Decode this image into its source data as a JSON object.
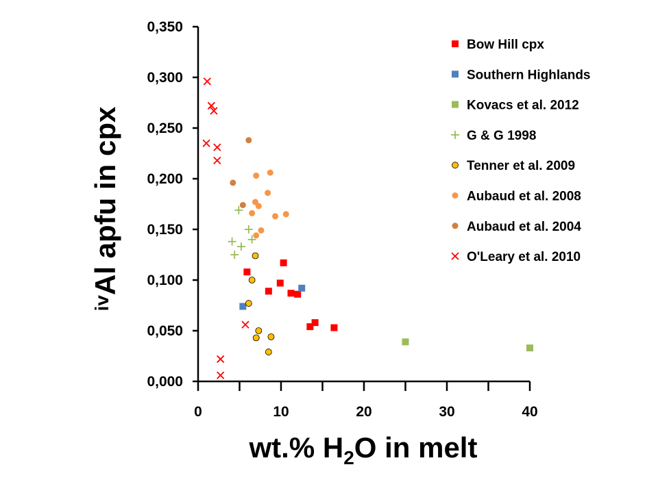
{
  "chart_data": {
    "type": "scatter",
    "xlabel": {
      "main": "wt.% H",
      "sub": "2",
      "rest": "O in melt"
    },
    "ylabel": {
      "sup": "iv",
      "main": "Al apfu in cpx"
    },
    "xlim": [
      0,
      40
    ],
    "ylim": [
      0,
      0.35
    ],
    "x_ticks": [
      0,
      10,
      20,
      30,
      40
    ],
    "x_tick_labels": [
      "0",
      "10",
      "20",
      "30",
      "40"
    ],
    "y_ticks": [
      0,
      0.05,
      0.1,
      0.15,
      0.2,
      0.25,
      0.3,
      0.35
    ],
    "y_tick_labels": [
      "0,000",
      "0,050",
      "0,100",
      "0,150",
      "0,200",
      "0,250",
      "0,300",
      "0,350"
    ],
    "grid": false,
    "legend_position": "top-right",
    "series": [
      {
        "name": "Bow Hill cpx",
        "marker": "square",
        "color": "#ff0000",
        "points": [
          [
            5.9,
            0.108
          ],
          [
            8.5,
            0.089
          ],
          [
            9.9,
            0.097
          ],
          [
            10.3,
            0.117
          ],
          [
            11.2,
            0.087
          ],
          [
            12.0,
            0.086
          ],
          [
            13.5,
            0.054
          ],
          [
            14.1,
            0.058
          ],
          [
            16.4,
            0.053
          ]
        ]
      },
      {
        "name": "Southern Highlands",
        "marker": "square",
        "color": "#4f81bd",
        "points": [
          [
            5.4,
            0.074
          ],
          [
            12.5,
            0.092
          ]
        ]
      },
      {
        "name": "Kovacs et al. 2012",
        "marker": "square",
        "color": "#9bbb59",
        "points": [
          [
            25.0,
            0.039
          ],
          [
            40.0,
            0.033
          ]
        ]
      },
      {
        "name": "G & G 1998",
        "marker": "plus",
        "color": "#9bbb59",
        "points": [
          [
            4.1,
            0.138
          ],
          [
            4.4,
            0.125
          ],
          [
            4.9,
            0.169
          ],
          [
            5.2,
            0.133
          ],
          [
            6.1,
            0.15
          ],
          [
            6.5,
            0.14
          ]
        ]
      },
      {
        "name": "Tenner et al. 2009",
        "marker": "circle-outline",
        "color": "#ffc000",
        "points": [
          [
            6.1,
            0.077
          ],
          [
            6.5,
            0.1
          ],
          [
            6.9,
            0.124
          ],
          [
            7.0,
            0.043
          ],
          [
            7.3,
            0.05
          ],
          [
            8.5,
            0.029
          ],
          [
            8.8,
            0.044
          ]
        ]
      },
      {
        "name": "Aubaud et al. 2008",
        "marker": "circle",
        "color": "#f79646",
        "points": [
          [
            6.5,
            0.166
          ],
          [
            6.9,
            0.177
          ],
          [
            7.0,
            0.203
          ],
          [
            7.0,
            0.144
          ],
          [
            7.3,
            0.173
          ],
          [
            7.6,
            0.149
          ],
          [
            8.4,
            0.186
          ],
          [
            8.7,
            0.206
          ],
          [
            9.3,
            0.163
          ],
          [
            10.6,
            0.165
          ]
        ]
      },
      {
        "name": "Aubaud et al. 2004",
        "marker": "circle",
        "color": "#d08040",
        "points": [
          [
            4.2,
            0.196
          ],
          [
            5.4,
            0.174
          ],
          [
            6.1,
            0.238
          ]
        ]
      },
      {
        "name": "O'Leary et al. 2010",
        "marker": "x",
        "color": "#ff0000",
        "points": [
          [
            1.1,
            0.296
          ],
          [
            1.6,
            0.272
          ],
          [
            1.9,
            0.267
          ],
          [
            1.0,
            0.235
          ],
          [
            2.3,
            0.231
          ],
          [
            2.3,
            0.218
          ],
          [
            5.7,
            0.056
          ],
          [
            2.7,
            0.022
          ],
          [
            2.7,
            0.006
          ]
        ]
      }
    ]
  }
}
